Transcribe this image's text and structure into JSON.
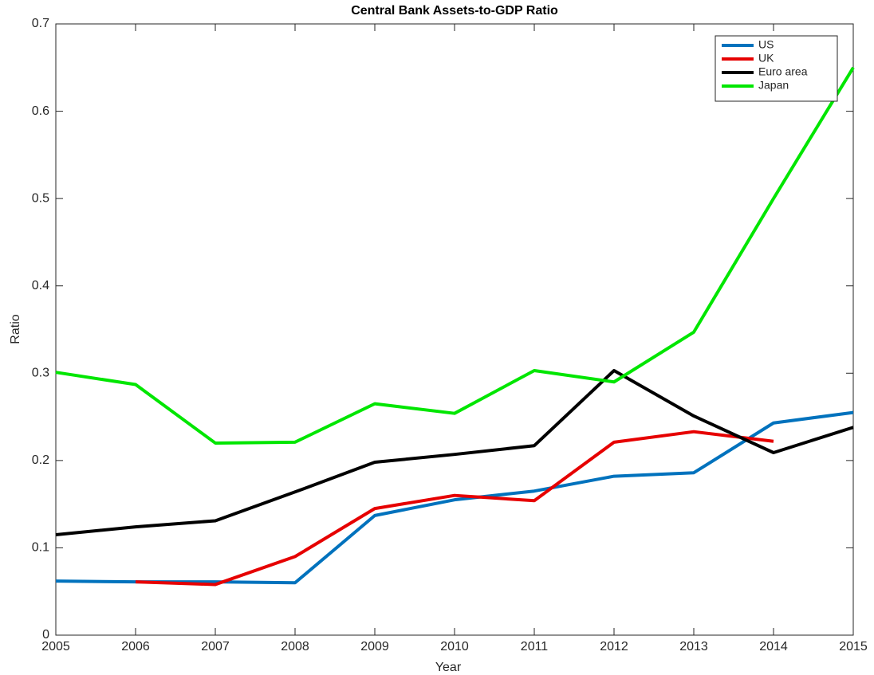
{
  "chart_data": {
    "type": "line",
    "title": "Central Bank Assets-to-GDP Ratio",
    "x_label": "Year",
    "y_label": "Ratio",
    "x": [
      2005,
      2006,
      2007,
      2008,
      2009,
      2010,
      2011,
      2012,
      2013,
      2014,
      2015
    ],
    "series": [
      {
        "name": "US",
        "color": "#0072bd",
        "values": [
          0.062,
          0.061,
          0.061,
          0.06,
          0.137,
          0.155,
          0.165,
          0.182,
          0.186,
          0.243,
          0.255
        ]
      },
      {
        "name": "UK",
        "color": "#e60000",
        "values": [
          null,
          0.061,
          0.058,
          0.09,
          0.145,
          0.16,
          0.154,
          0.221,
          0.233,
          0.222,
          null
        ]
      },
      {
        "name": "Euro area",
        "color": "#000000",
        "values": [
          0.115,
          0.124,
          0.131,
          0.164,
          0.198,
          0.207,
          0.217,
          0.303,
          0.251,
          0.209,
          0.238
        ]
      },
      {
        "name": "Japan",
        "color": "#00e600",
        "values": [
          0.301,
          0.287,
          0.22,
          0.221,
          0.265,
          0.254,
          0.303,
          0.29,
          0.347,
          0.5,
          0.65
        ]
      }
    ],
    "xlim": [
      2005,
      2015
    ],
    "xticks": [
      2005,
      2006,
      2007,
      2008,
      2009,
      2010,
      2011,
      2012,
      2013,
      2014,
      2015
    ],
    "ylim": [
      0,
      0.7
    ],
    "yticks": [
      0,
      0.1,
      0.2,
      0.3,
      0.4,
      0.5,
      0.6,
      0.7
    ],
    "legend": "upper right",
    "grid": false
  }
}
